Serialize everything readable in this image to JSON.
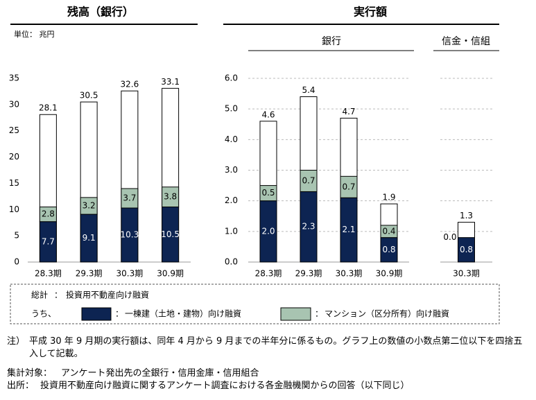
{
  "headers": {
    "execution": "実行額"
  },
  "legend": {
    "total_label": "総計",
    "separator": "：",
    "subset_label": "うち、"
  },
  "notes": {
    "note_label": "注）",
    "note": "平成 30 年 9 月期の実行額は、同年 4 月から 9 月までの半年分に係るもの。グラフ上の数値の小数点第二位以下を四捨五入して記載。",
    "scope_label": "集計対象：",
    "scope": "アンケート発出先の全銀行・信用金庫・信用組合",
    "source_label": "出所：",
    "source": "投資用不動産向け融資に関するアンケート調査における各金融機関からの回答（以下同じ）"
  },
  "chart_data": [
    {
      "type": "bar",
      "layout": "total-behind-stack",
      "title": "残高（銀行）",
      "subtitle": "単位： 兆円",
      "categories": [
        "28.3期",
        "29.3期",
        "30.3期",
        "30.9期"
      ],
      "ylim": [
        0,
        35
      ],
      "yticks": [
        0,
        5,
        10,
        15,
        20,
        25,
        30,
        35
      ],
      "grid": false,
      "tick_labels": true,
      "series": [
        {
          "name": "投資用不動産向け融資",
          "color": "#ffffff",
          "values": [
            28.1,
            30.5,
            32.6,
            33.1
          ]
        },
        {
          "name": "一棟建（土地・建物）向け融資",
          "color": "#0d2452",
          "values": [
            7.7,
            9.1,
            10.3,
            10.5
          ]
        },
        {
          "name": "マンション（区分所有）向け融資",
          "color": "#a8c4b1",
          "values": [
            2.8,
            3.2,
            3.7,
            3.8
          ]
        }
      ]
    },
    {
      "type": "bar",
      "layout": "total-behind-stack",
      "title": "銀行",
      "categories": [
        "28.3期",
        "29.3期",
        "30.3期",
        "30.9期"
      ],
      "ylim": [
        0,
        6
      ],
      "yticks": [
        {
          "value": 0,
          "label": "0.0"
        },
        {
          "value": 1,
          "label": "1.0"
        },
        {
          "value": 2,
          "label": "2.0"
        },
        {
          "value": 3,
          "label": "3.0"
        },
        {
          "value": 4,
          "label": "4.0"
        },
        {
          "value": 5,
          "label": "5.0"
        },
        {
          "value": 6,
          "label": "6.0"
        }
      ],
      "grid": true,
      "tick_labels": true,
      "series": [
        {
          "color": "#ffffff",
          "values": [
            4.6,
            5.4,
            4.7,
            1.9
          ]
        },
        {
          "color": "#0d2452",
          "values": [
            2,
            2.3,
            2.1,
            0.8
          ],
          "value_labels": [
            "2.0",
            "2.3",
            "2.1",
            "0.8"
          ]
        },
        {
          "color": "#a8c4b1",
          "values": [
            0.5,
            0.7,
            0.7,
            0.4
          ]
        }
      ]
    },
    {
      "type": "bar",
      "layout": "total-behind-stack",
      "title": "信金・信組",
      "categories": [
        "30.3期"
      ],
      "ylim": [
        0,
        6
      ],
      "yticks": [
        0,
        1,
        2,
        3,
        4,
        5,
        6
      ],
      "grid": true,
      "tick_labels": false,
      "series": [
        {
          "color": "#ffffff",
          "values": [
            1.3
          ]
        },
        {
          "color": "#0d2452",
          "values": [
            0.8
          ]
        },
        {
          "color": "#a8c4b1",
          "values": [
            0
          ],
          "value_labels": [
            "0.0"
          ]
        }
      ]
    }
  ]
}
